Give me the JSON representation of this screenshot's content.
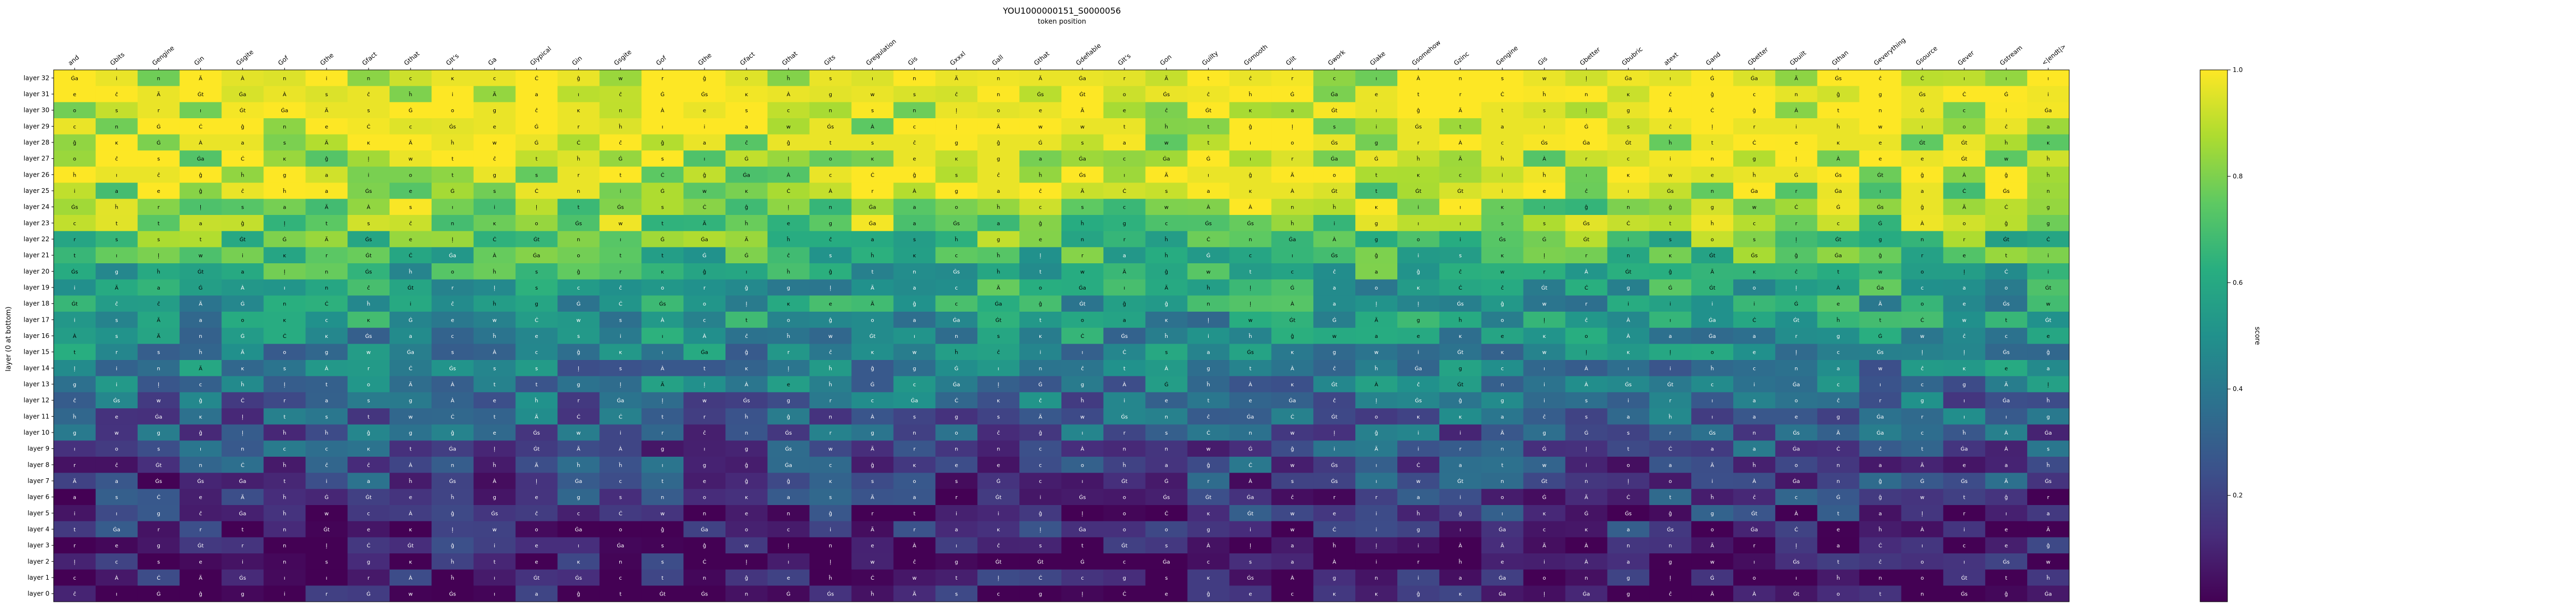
{
  "chart_data": {
    "type": "heatmap",
    "title": "YOU1000000151_S0000056",
    "subtitle": "token position",
    "xlabel": "token position",
    "ylabel": "layer (0 at bottom)",
    "colorbar_label": "score",
    "colorbar_ticks": [
      0.2,
      0.4,
      0.6,
      0.8,
      1.0
    ],
    "zlim": [
      0.0,
      1.0
    ],
    "colormap": "viridis",
    "tokens": [
      "and",
      "Gbits",
      "Gengine",
      "Gin",
      "Gsgite",
      "Gof",
      "Gthe",
      "Gfact",
      "Gthat",
      "GIt's",
      "Ga",
      "Glypical",
      "Gin",
      "Gsgite",
      "Gof",
      "Gthe",
      "Gfact",
      "Gthat",
      "Gits",
      "Gregulation",
      "Gis",
      "Gxxxl",
      "Gall",
      "Gthat",
      "Gdefiable",
      "GIt's",
      "Gon",
      "Guilty",
      "Gsmooth",
      "Glit",
      "Gwork",
      "Glake",
      "Gsomehow",
      "Gzinc",
      "Gengine",
      "Gis",
      "Gbetter",
      "Gbubric",
      "atext",
      "Gand",
      "Gbetter",
      "Gbuilt",
      "Gthan",
      "Geverything",
      "Gsource",
      "Gever",
      "Gstream",
      "<|endt|>"
    ],
    "layers": [
      "layer 32",
      "layer 31",
      "layer 30",
      "layer 29",
      "layer 28",
      "layer 27",
      "layer 26",
      "layer 25",
      "layer 24",
      "layer 23",
      "layer 22",
      "layer 21",
      "layer 20",
      "layer 19",
      "layer 18",
      "layer 17",
      "layer 16",
      "layer 15",
      "layer 14",
      "layer 13",
      "layer 12",
      "layer 11",
      "layer 10",
      "layer 9",
      "layer 8",
      "layer 7",
      "layer 6",
      "layer 5",
      "layer 4",
      "layer 3",
      "layer 2",
      "layer 1",
      "layer 0"
    ],
    "value_profile": [
      0.96,
      0.95,
      0.94,
      0.93,
      0.92,
      0.9,
      0.88,
      0.86,
      0.84,
      0.8,
      0.74,
      0.68,
      0.62,
      0.58,
      0.55,
      0.52,
      0.48,
      0.44,
      0.42,
      0.38,
      0.34,
      0.3,
      0.27,
      0.25,
      0.22,
      0.19,
      0.16,
      0.13,
      0.11,
      0.09,
      0.07,
      0.05,
      0.03
    ],
    "cell_glyphs": [
      "a",
      "ĉ",
      "Ġ",
      "ļ",
      "ĝ",
      "t",
      "Ä",
      "o",
      "e",
      "s",
      "ĸ",
      "ı",
      "ĥ",
      "c",
      "n",
      "i",
      "Ġt",
      "g",
      "Ġa",
      "Ċ",
      "À",
      "Ġs",
      "w",
      "r"
    ]
  }
}
